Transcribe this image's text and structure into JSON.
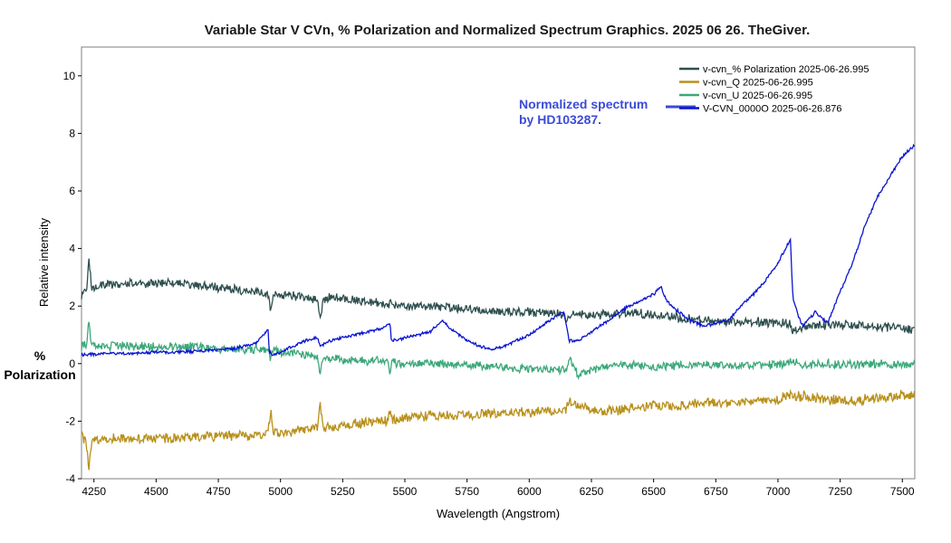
{
  "chart_data": {
    "type": "line",
    "title": "Variable Star V CVn, % Polarization and Normalized Spectrum Graphics. 2025 06 26. TheGiver.",
    "xlabel": "Wavelength (Angstrom)",
    "ylabel": "Relative intensity",
    "ylabel2": "%\nPolarization",
    "annotation": "Normalized spectrum\nby HD103287.",
    "xlim": [
      4200,
      7550
    ],
    "ylim": [
      -4,
      11
    ],
    "xticks": [
      4250,
      4500,
      4750,
      5000,
      5250,
      5500,
      5750,
      6000,
      6250,
      6500,
      6750,
      7000,
      7250,
      7500
    ],
    "yticks": [
      -4,
      -2,
      0,
      2,
      4,
      6,
      8,
      10
    ],
    "grid": false,
    "legend_position": "top-right",
    "series": [
      {
        "name": "v-cvn_% Polarization  2025-06-26.995",
        "color": "#2f4f4f",
        "noise": 0.18,
        "x": [
          4200,
          4220,
          4230,
          4240,
          4260,
          4400,
          4500,
          4600,
          4700,
          4800,
          4900,
          4950,
          4960,
          4970,
          5000,
          5100,
          5150,
          5160,
          5170,
          5200,
          5300,
          5400,
          5500,
          5600,
          5700,
          5800,
          5900,
          6000,
          6100,
          6140,
          6150,
          6160,
          6200,
          6300,
          6400,
          6500,
          6600,
          6700,
          6800,
          6900,
          7000,
          7050,
          7060,
          7100,
          7200,
          7300,
          7400,
          7500,
          7550
        ],
        "y": [
          2.3,
          2.6,
          3.7,
          2.6,
          2.7,
          2.8,
          2.8,
          2.8,
          2.7,
          2.6,
          2.5,
          2.4,
          1.9,
          2.4,
          2.4,
          2.3,
          2.2,
          1.5,
          2.2,
          2.3,
          2.2,
          2.1,
          2.0,
          2.0,
          1.95,
          1.85,
          1.8,
          1.8,
          1.75,
          1.7,
          1.4,
          1.75,
          1.7,
          1.7,
          1.75,
          1.7,
          1.6,
          1.5,
          1.45,
          1.45,
          1.4,
          1.4,
          1.1,
          1.3,
          1.35,
          1.35,
          1.3,
          1.25,
          1.15
        ]
      },
      {
        "name": "v-cvn_Q  2025-06-26.995",
        "color": "#b8901a",
        "noise": 0.2,
        "x": [
          4200,
          4220,
          4230,
          4240,
          4300,
          4400,
          4500,
          4600,
          4700,
          4800,
          4900,
          4950,
          4960,
          4970,
          5000,
          5100,
          5150,
          5160,
          5170,
          5200,
          5300,
          5400,
          5430,
          5440,
          5450,
          5500,
          5600,
          5700,
          5800,
          5900,
          6000,
          6100,
          6150,
          6160,
          6200,
          6300,
          6400,
          6500,
          6600,
          6700,
          6800,
          6900,
          7000,
          7050,
          7100,
          7200,
          7300,
          7400,
          7500,
          7550
        ],
        "y": [
          -2.5,
          -2.8,
          -3.7,
          -2.7,
          -2.6,
          -2.6,
          -2.6,
          -2.6,
          -2.5,
          -2.5,
          -2.5,
          -2.4,
          -1.6,
          -2.4,
          -2.4,
          -2.3,
          -2.2,
          -1.4,
          -2.2,
          -2.2,
          -2.1,
          -2.0,
          -2.0,
          -1.6,
          -1.95,
          -1.9,
          -1.8,
          -1.8,
          -1.75,
          -1.7,
          -1.7,
          -1.65,
          -1.6,
          -1.3,
          -1.5,
          -1.7,
          -1.55,
          -1.45,
          -1.45,
          -1.35,
          -1.35,
          -1.3,
          -1.25,
          -1.1,
          -1.15,
          -1.25,
          -1.3,
          -1.2,
          -1.1,
          -1.1
        ]
      },
      {
        "name": "v-cvn_U  2025-06-26.995",
        "color": "#3ca87a",
        "noise": 0.17,
        "x": [
          4200,
          4220,
          4230,
          4240,
          4300,
          4400,
          4500,
          4600,
          4700,
          4800,
          4900,
          4950,
          4960,
          4970,
          5000,
          5100,
          5150,
          5160,
          5170,
          5200,
          5300,
          5400,
          5430,
          5440,
          5450,
          5500,
          5600,
          5700,
          5800,
          5900,
          6000,
          6100,
          6150,
          6160,
          6200,
          6300,
          6400,
          6500,
          6600,
          6700,
          6800,
          6900,
          7000,
          7050,
          7100,
          7200,
          7300,
          7400,
          7500,
          7550
        ],
        "y": [
          0.6,
          0.7,
          1.4,
          0.6,
          0.6,
          0.6,
          0.6,
          0.6,
          0.55,
          0.5,
          0.5,
          0.45,
          0.2,
          0.45,
          0.4,
          0.3,
          0.25,
          -0.4,
          0.2,
          0.2,
          0.1,
          0.1,
          0.05,
          -0.3,
          0.05,
          0.0,
          0.0,
          -0.05,
          -0.05,
          -0.15,
          -0.2,
          -0.2,
          -0.2,
          0.2,
          -0.4,
          -0.1,
          -0.05,
          -0.1,
          -0.05,
          -0.05,
          -0.05,
          -0.05,
          -0.05,
          0.1,
          -0.05,
          0.0,
          -0.05,
          0.0,
          -0.05,
          0.0
        ]
      },
      {
        "name": "V-CVN_0000O  2025-06-26.876",
        "color": "#0a14d2",
        "noise": 0.06,
        "x": [
          4200,
          4300,
          4400,
          4500,
          4600,
          4700,
          4800,
          4900,
          4950,
          4955,
          4970,
          5000,
          5100,
          5150,
          5160,
          5200,
          5300,
          5400,
          5440,
          5445,
          5450,
          5500,
          5600,
          5650,
          5700,
          5750,
          5800,
          5850,
          5900,
          5950,
          6000,
          6050,
          6100,
          6140,
          6150,
          6160,
          6200,
          6250,
          6300,
          6350,
          6400,
          6450,
          6500,
          6530,
          6550,
          6600,
          6650,
          6700,
          6750,
          6800,
          6850,
          6900,
          6950,
          7000,
          7030,
          7050,
          7060,
          7080,
          7100,
          7120,
          7150,
          7200,
          7250,
          7300,
          7350,
          7400,
          7450,
          7500,
          7550
        ],
        "y": [
          0.3,
          0.35,
          0.35,
          0.4,
          0.4,
          0.45,
          0.5,
          0.7,
          1.2,
          0.4,
          0.3,
          0.4,
          0.8,
          0.9,
          0.6,
          0.8,
          1.0,
          1.2,
          1.4,
          0.9,
          0.8,
          0.9,
          1.1,
          1.5,
          1.1,
          0.8,
          0.6,
          0.5,
          0.6,
          0.8,
          1.0,
          1.3,
          1.6,
          1.8,
          1.3,
          0.8,
          0.8,
          1.1,
          1.4,
          1.7,
          2.0,
          2.2,
          2.4,
          2.7,
          2.2,
          1.8,
          1.5,
          1.3,
          1.4,
          1.5,
          2.0,
          2.4,
          2.9,
          3.5,
          4.0,
          4.3,
          2.3,
          1.7,
          1.3,
          1.5,
          1.8,
          1.4,
          2.5,
          3.5,
          4.8,
          5.8,
          6.5,
          7.2,
          7.6
        ]
      }
    ]
  }
}
